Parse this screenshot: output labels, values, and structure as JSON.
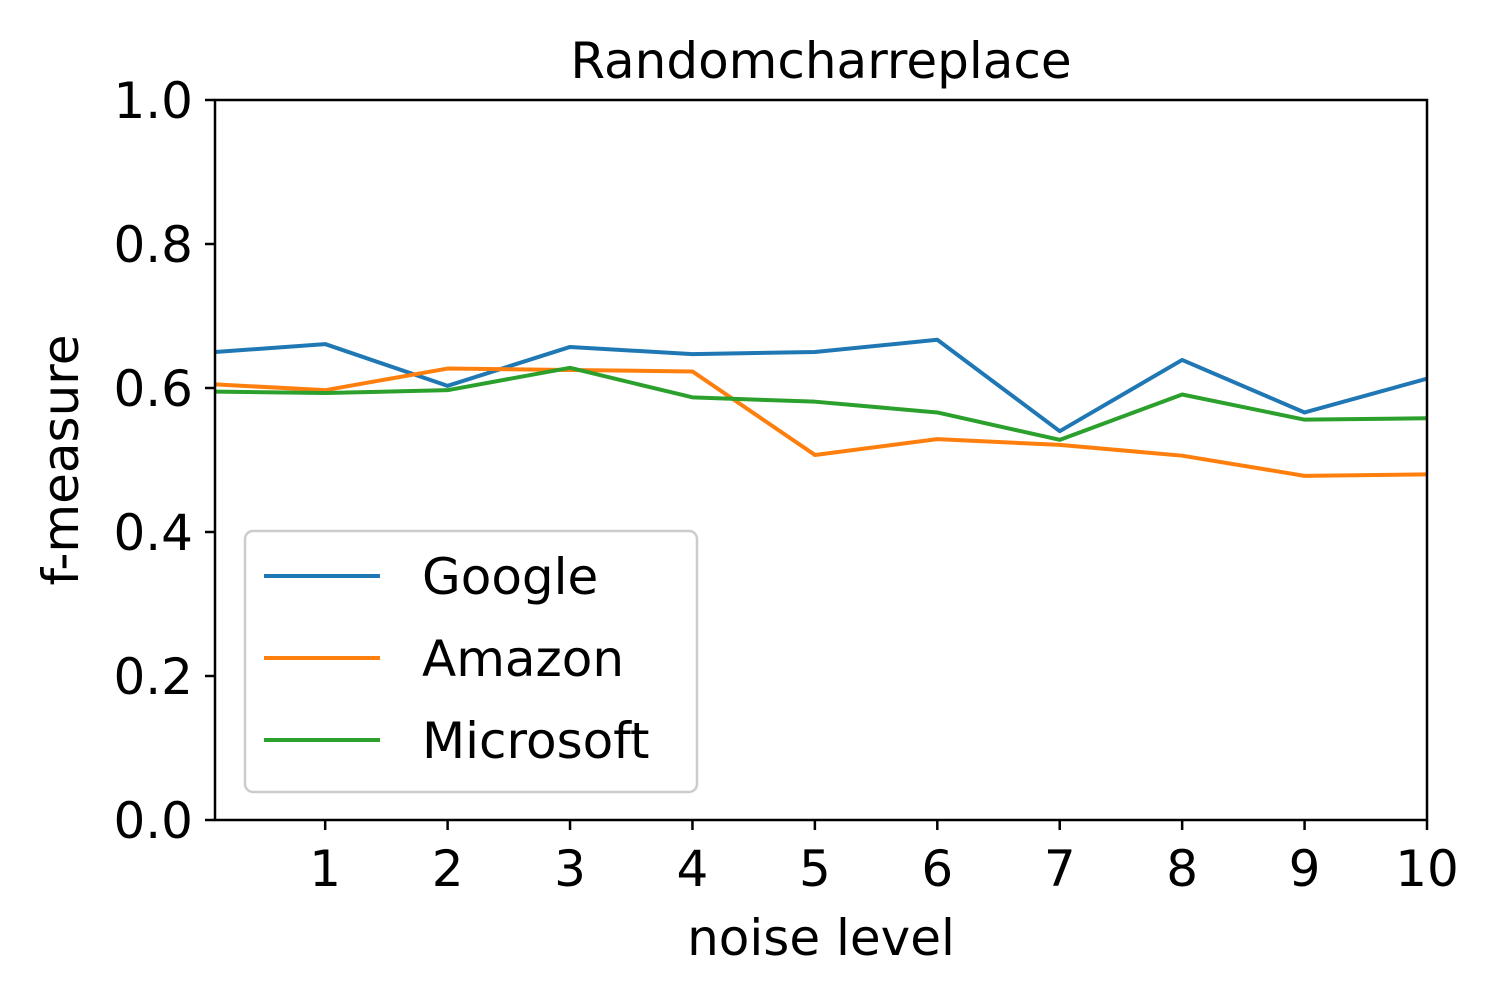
{
  "chart_data": {
    "type": "line",
    "title": "Randomcharreplace",
    "xlabel": "noise level",
    "ylabel": "f-measure",
    "xlim": [
      0.1,
      10
    ],
    "ylim": [
      0.0,
      1.0
    ],
    "xticks": [
      1,
      2,
      3,
      4,
      5,
      6,
      7,
      8,
      9,
      10
    ],
    "xtick_labels": [
      "1",
      "2",
      "3",
      "4",
      "5",
      "6",
      "7",
      "8",
      "9",
      "10"
    ],
    "yticks": [
      0.0,
      0.2,
      0.4,
      0.6,
      0.8,
      1.0
    ],
    "ytick_labels": [
      "0.0",
      "0.2",
      "0.4",
      "0.6",
      "0.8",
      "1.0"
    ],
    "grid": false,
    "legend_position": "lower-left",
    "x": [
      0.1,
      1,
      2,
      3,
      4,
      5,
      6,
      7,
      8,
      9,
      10
    ],
    "series": [
      {
        "name": "Google",
        "color": "#1f77b4",
        "values": [
          0.65,
          0.661,
          0.603,
          0.657,
          0.647,
          0.65,
          0.667,
          0.54,
          0.639,
          0.566,
          0.613
        ]
      },
      {
        "name": "Amazon",
        "color": "#ff7f0e",
        "values": [
          0.605,
          0.597,
          0.627,
          0.625,
          0.623,
          0.507,
          0.529,
          0.521,
          0.506,
          0.478,
          0.48
        ]
      },
      {
        "name": "Microsoft",
        "color": "#2ca02c",
        "values": [
          0.595,
          0.593,
          0.597,
          0.628,
          0.587,
          0.581,
          0.566,
          0.528,
          0.591,
          0.556,
          0.558
        ]
      }
    ]
  }
}
